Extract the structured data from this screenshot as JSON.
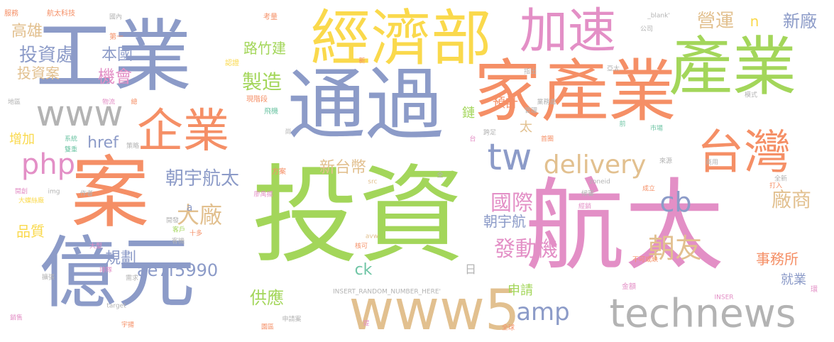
{
  "palette": {
    "blue": "#8c9bc8",
    "green": "#a3d65a",
    "yellow": "#fad94c",
    "orange": "#f58f66",
    "pink": "#e38fc6",
    "tan": "#e2c08f",
    "gray": "#b3b3b3",
    "teal": "#6fc5a5"
  },
  "words": [
    {
      "text": "投資",
      "color": "green"
    },
    {
      "text": "航太",
      "color": "pink"
    },
    {
      "text": "工業",
      "color": "blue"
    },
    {
      "text": "通過",
      "color": "blue"
    },
    {
      "text": "經濟部",
      "color": "yellow"
    },
    {
      "text": "家產業",
      "color": "orange"
    },
    {
      "text": "產業",
      "color": "green"
    },
    {
      "text": "億元",
      "color": "blue"
    },
    {
      "text": "案",
      "color": "orange"
    },
    {
      "text": "www5",
      "color": "tan"
    },
    {
      "text": "technews",
      "color": "gray"
    },
    {
      "text": "加速",
      "color": "pink"
    },
    {
      "text": "台灣",
      "color": "orange"
    },
    {
      "text": "企業",
      "color": "orange"
    },
    {
      "text": "www",
      "color": "gray"
    },
    {
      "text": "tw",
      "color": "blue"
    },
    {
      "text": "delivery",
      "color": "tan"
    },
    {
      "text": "php",
      "color": "pink"
    },
    {
      "text": "amp",
      "color": "blue"
    },
    {
      "text": "cb",
      "color": "blue"
    },
    {
      "text": "投資處",
      "color": "blue"
    },
    {
      "text": "朝宇航太",
      "color": "blue"
    },
    {
      "text": "大廠",
      "color": "tan"
    },
    {
      "text": "國際",
      "color": "pink"
    },
    {
      "text": "發動機",
      "color": "pink"
    },
    {
      "text": "朝友",
      "color": "tan"
    },
    {
      "text": "廠商",
      "color": "tan"
    },
    {
      "text": "新台幣",
      "color": "tan"
    },
    {
      "text": "製造",
      "color": "green"
    },
    {
      "text": "高雄",
      "color": "tan"
    },
    {
      "text": "機會",
      "color": "pink"
    },
    {
      "text": "本國",
      "color": "blue"
    },
    {
      "text": "投資案",
      "color": "tan"
    },
    {
      "text": "路竹建",
      "color": "green"
    },
    {
      "text": "營運",
      "color": "tan"
    },
    {
      "text": "新廠",
      "color": "blue"
    },
    {
      "text": "n",
      "color": "yellow"
    },
    {
      "text": "href",
      "color": "blue"
    },
    {
      "text": "增加",
      "color": "yellow"
    },
    {
      "text": "品質",
      "color": "yellow"
    },
    {
      "text": "規劃",
      "color": "blue"
    },
    {
      "text": "ae7f5990",
      "color": "blue"
    },
    {
      "text": "供應",
      "color": "green"
    },
    {
      "text": "ck",
      "color": "teal"
    },
    {
      "text": "申請",
      "color": "green"
    },
    {
      "text": "事務所",
      "color": "orange"
    },
    {
      "text": "就業",
      "color": "blue"
    },
    {
      "text": "朝宇航",
      "color": "blue"
    },
    {
      "text": "預計",
      "color": "orange"
    },
    {
      "text": "鏈",
      "color": "green"
    },
    {
      "text": "太",
      "color": "tan"
    },
    {
      "text": "日",
      "color": "gray"
    },
    {
      "text": "a",
      "color": "blue"
    },
    {
      "text": "服務",
      "color": "orange"
    },
    {
      "text": "航太科技",
      "color": "orange"
    },
    {
      "text": "國內",
      "color": "gray"
    },
    {
      "text": "第一",
      "color": "orange"
    },
    {
      "text": "考量",
      "color": "orange"
    },
    {
      "text": "_blank'",
      "color": "gray"
    },
    {
      "text": "公司",
      "color": "gray"
    },
    {
      "text": "認證",
      "color": "yellow"
    },
    {
      "text": "新",
      "color": "orange"
    },
    {
      "text": "指出",
      "color": "gray"
    },
    {
      "text": "亞太",
      "color": "gray"
    },
    {
      "text": "業務處",
      "color": "gray"
    },
    {
      "text": "模式",
      "color": "gray"
    },
    {
      "text": "管理",
      "color": "gray"
    },
    {
      "text": "地區",
      "color": "gray"
    },
    {
      "text": "物流",
      "color": "pink"
    },
    {
      "text": "總",
      "color": "orange"
    },
    {
      "text": "現階段",
      "color": "orange"
    },
    {
      "text": "飛機",
      "color": "teal"
    },
    {
      "text": "前",
      "color": "teal"
    },
    {
      "text": "市場",
      "color": "teal"
    },
    {
      "text": "尚",
      "color": "gray"
    },
    {
      "text": "跨足",
      "color": "gray"
    },
    {
      "text": "首圈",
      "color": "orange"
    },
    {
      "text": "台",
      "color": "pink"
    },
    {
      "text": "系統",
      "color": "teal"
    },
    {
      "text": "雙重",
      "color": "teal"
    },
    {
      "text": "策略",
      "color": "gray"
    },
    {
      "text": "方案",
      "color": "orange"
    },
    {
      "text": "全",
      "color": "gray"
    },
    {
      "text": "來源",
      "color": "gray"
    },
    {
      "text": "商用",
      "color": "gray"
    },
    {
      "text": "全新",
      "color": "gray"
    },
    {
      "text": "打入",
      "color": "orange"
    },
    {
      "text": "開創",
      "color": "pink"
    },
    {
      "text": "img",
      "color": "gray"
    },
    {
      "text": "作者",
      "color": "gray"
    },
    {
      "text": "廖禹揚",
      "color": "pink"
    },
    {
      "text": "src",
      "color": "tan"
    },
    {
      "text": "zoneid",
      "color": "gray"
    },
    {
      "text": "候審",
      "color": "gray"
    },
    {
      "text": "成立",
      "color": "orange"
    },
    {
      "text": "大蝶絲廠",
      "color": "yellow"
    },
    {
      "text": "開發",
      "color": "gray"
    },
    {
      "text": "經銷",
      "color": "pink"
    },
    {
      "text": "客戶",
      "color": "green"
    },
    {
      "text": "十多",
      "color": "orange"
    },
    {
      "text": "客機",
      "color": "gray"
    },
    {
      "text": "大型",
      "color": "pink"
    },
    {
      "text": "核可",
      "color": "orange"
    },
    {
      "text": "avw",
      "color": "tan"
    },
    {
      "text": "不可或缺",
      "color": "orange"
    },
    {
      "text": "擴張",
      "color": "gray"
    },
    {
      "text": "排隊",
      "color": "pink"
    },
    {
      "text": "需求",
      "color": "gray"
    },
    {
      "text": "INSERT_RANDOM_NUMBER_HERE'",
      "color": "gray"
    },
    {
      "text": "金額",
      "color": "pink"
    },
    {
      "text": "INSER",
      "color": "pink"
    },
    {
      "text": "target",
      "color": "gray"
    },
    {
      "text": "宇揚",
      "color": "orange"
    },
    {
      "text": "銷售",
      "color": "pink"
    },
    {
      "text": "申請案",
      "color": "gray"
    },
    {
      "text": "提",
      "color": "pink"
    },
    {
      "text": "全球",
      "color": "orange"
    },
    {
      "text": "園區",
      "color": "orange"
    },
    {
      "text": "環",
      "color": "pink"
    }
  ]
}
